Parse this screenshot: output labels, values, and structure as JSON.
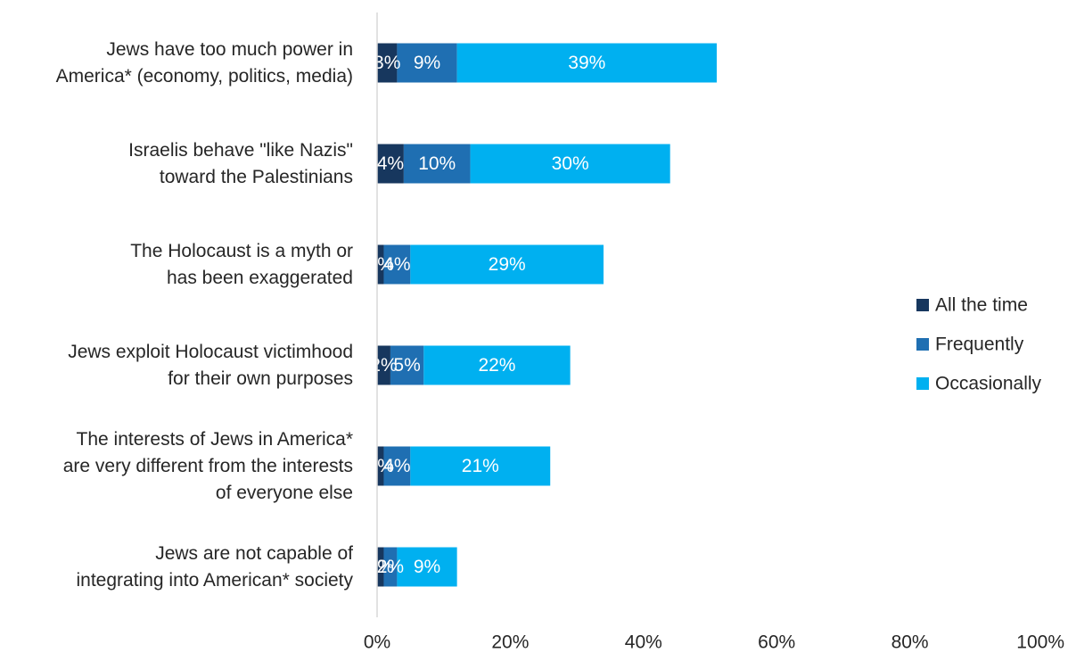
{
  "chart_data": {
    "type": "bar",
    "orientation": "horizontal",
    "stacked": true,
    "categories": [
      [
        "Jews have too much power in",
        "America* (economy, politics, media)"
      ],
      [
        "Israelis behave \"like Nazis\"",
        "toward the Palestinians"
      ],
      [
        "The Holocaust is a myth or",
        "has been exaggerated"
      ],
      [
        "Jews exploit Holocaust victimhood",
        "for their own purposes"
      ],
      [
        "The interests of Jews in America*",
        "are very different from the interests",
        "of everyone else"
      ],
      [
        "Jews are not capable of",
        "integrating into American* society"
      ]
    ],
    "series": [
      {
        "name": "All the time",
        "color": "#17375e",
        "values": [
          3,
          4,
          1,
          2,
          1,
          1
        ],
        "labels": [
          "3%",
          "4%",
          "1%",
          "2%",
          "1%",
          "1%"
        ]
      },
      {
        "name": "Frequently",
        "color": "#1f6fb2",
        "values": [
          9,
          10,
          4,
          5,
          4,
          2
        ],
        "labels": [
          "9%",
          "10%",
          "4%",
          "5%",
          "4%",
          "2%"
        ]
      },
      {
        "name": "Occasionally",
        "color": "#00b0f0",
        "values": [
          39,
          30,
          29,
          22,
          21,
          9
        ],
        "labels": [
          "39%",
          "30%",
          "29%",
          "22%",
          "21%",
          "9%"
        ]
      }
    ],
    "xlim": [
      0,
      100
    ],
    "xticks": [
      "0%",
      "20%",
      "40%",
      "60%",
      "80%",
      "100%"
    ],
    "xtick_values": [
      0,
      20,
      40,
      60,
      80,
      100
    ],
    "legend_position": "right",
    "grid": false,
    "title": "",
    "xlabel": "",
    "ylabel": ""
  }
}
